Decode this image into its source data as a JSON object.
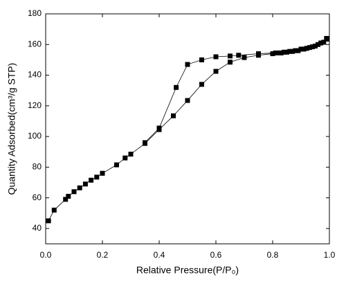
{
  "chart_data": {
    "type": "line",
    "xlabel": "Relative Pressure(P/P₀)",
    "ylabel": "Quantity Adsorbed(cm³/g STP)",
    "xlim": [
      0,
      1
    ],
    "ylim": [
      30,
      180
    ],
    "xticks": [
      {
        "value": 0,
        "label": "0.0"
      },
      0.2,
      0.4,
      0.6,
      0.8,
      {
        "value": 1,
        "label": "1.0"
      }
    ],
    "yticks": [
      40,
      60,
      80,
      100,
      120,
      140,
      160,
      180
    ],
    "series": [
      {
        "color": "#000000",
        "x": [
          0.01,
          0.03,
          0.07,
          0.08,
          0.1,
          0.12,
          0.14,
          0.16,
          0.18,
          0.2,
          0.25,
          0.28,
          0.3,
          0.35,
          0.4,
          0.45,
          0.5,
          0.55,
          0.6,
          0.65,
          0.7,
          0.75,
          0.8,
          0.82,
          0.84,
          0.86,
          0.88,
          0.9,
          0.92,
          0.94,
          0.96,
          0.98,
          0.99
        ],
        "values": [
          45,
          52,
          59,
          61,
          64,
          66.5,
          69,
          71.5,
          73.5,
          76,
          81.5,
          86,
          88.5,
          95.5,
          104.5,
          113.5,
          123.5,
          134,
          142.5,
          148.5,
          151.5,
          153,
          154,
          154.5,
          155,
          155.5,
          156,
          157,
          157.5,
          158.5,
          160,
          161.5,
          163.5
        ]
      },
      {
        "color": "#000000",
        "x": [
          0.99,
          0.97,
          0.95,
          0.93,
          0.91,
          0.89,
          0.87,
          0.85,
          0.83,
          0.81,
          0.75,
          0.68,
          0.65,
          0.6,
          0.55,
          0.5,
          0.46,
          0.4,
          0.35
        ],
        "values": [
          164,
          161,
          159,
          158,
          157,
          156,
          155.5,
          155,
          154.5,
          154.5,
          154,
          153,
          152.5,
          152,
          150,
          147,
          132,
          105.5,
          96
        ]
      }
    ]
  }
}
